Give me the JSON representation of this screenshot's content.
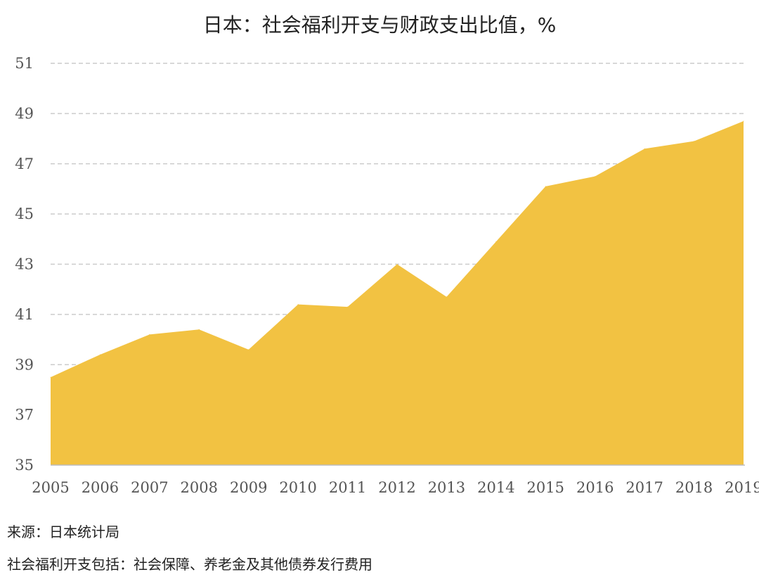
{
  "chart_data": {
    "type": "area",
    "title": "日本：社会福利开支与财政支出比值，%",
    "xlabel": "",
    "ylabel": "",
    "x": [
      "2005",
      "2006",
      "2007",
      "2008",
      "2009",
      "2010",
      "2011",
      "2012",
      "2013",
      "2014",
      "2015",
      "2016",
      "2017",
      "2018",
      "2019"
    ],
    "y_ticks": [
      35,
      37,
      39,
      41,
      43,
      45,
      47,
      49,
      51
    ],
    "ylim": [
      35,
      51
    ],
    "grid": true,
    "series": [
      {
        "values": [
          38.5,
          39.4,
          40.2,
          40.4,
          39.6,
          41.4,
          41.3,
          43.0,
          41.7,
          43.9,
          46.1,
          46.5,
          47.6,
          47.9,
          48.7
        ],
        "color": "#F2C242"
      }
    ]
  },
  "notes": {
    "source": "来源：日本统计局",
    "definition": "社会福利开支包括：社会保障、养老金及其他债券发行费用"
  },
  "colors": {
    "grid": "#cccccc",
    "axis": "#bbbbbb",
    "text": "#555555"
  }
}
